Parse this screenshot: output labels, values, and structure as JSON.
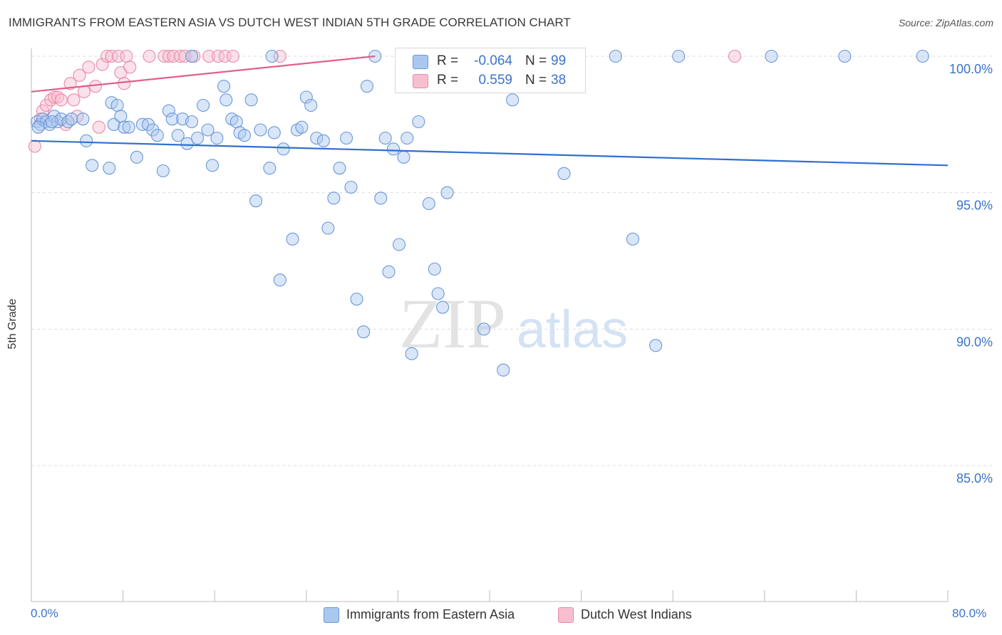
{
  "title": "IMMIGRANTS FROM EASTERN ASIA VS DUTCH WEST INDIAN 5TH GRADE CORRELATION CHART",
  "source": "Source: ZipAtlas.com",
  "watermark": {
    "zip": "ZIP",
    "atlas": "atlas"
  },
  "colors": {
    "blue_fill": "#aac8ef",
    "blue_stroke": "#6a98d8",
    "blue_line": "#2f6fd0",
    "pink_fill": "#f6bfd0",
    "pink_stroke": "#e88aa8",
    "pink_line": "#e0608a",
    "grid": "#dddddd",
    "axis_text": "#3b73c9"
  },
  "stats": [
    {
      "r_label": "R =",
      "r_value": "-0.064",
      "n_label": "N =",
      "n_value": "99"
    },
    {
      "r_label": "R =",
      "r_value": "0.559",
      "n_label": "N =",
      "n_value": "38"
    }
  ],
  "legend": [
    {
      "label": "Immigrants from Eastern Asia"
    },
    {
      "label": "Dutch West Indians"
    }
  ],
  "x_axis": {
    "min_label": "0.0%",
    "max_label": "80.0%"
  },
  "chart_data": {
    "type": "scatter",
    "title": "IMMIGRANTS FROM EASTERN ASIA VS DUTCH WEST INDIAN 5TH GRADE CORRELATION CHART",
    "xlabel": "",
    "ylabel": "5th Grade",
    "xlim": [
      0,
      80
    ],
    "ylim": [
      80,
      101
    ],
    "y_ticks": [
      {
        "value": 100,
        "label": "100.0%"
      },
      {
        "value": 95,
        "label": "95.0%"
      },
      {
        "value": 90,
        "label": "90.0%"
      },
      {
        "value": 85,
        "label": "85.0%"
      }
    ],
    "grid": "horizontal dashed",
    "series": [
      {
        "name": "Immigrants from Eastern Asia",
        "trend": {
          "x": [
            0,
            80
          ],
          "y": [
            96.9,
            96.0
          ]
        },
        "points": [
          [
            0.5,
            97.6
          ],
          [
            0.8,
            97.5
          ],
          [
            1.0,
            97.7
          ],
          [
            1.3,
            97.6
          ],
          [
            1.6,
            97.5
          ],
          [
            2.0,
            97.8
          ],
          [
            2.3,
            97.6
          ],
          [
            2.6,
            97.7
          ],
          [
            3.2,
            97.6
          ],
          [
            3.5,
            97.7
          ],
          [
            4.5,
            97.7
          ],
          [
            4.8,
            96.9
          ],
          [
            5.3,
            96.0
          ],
          [
            6.8,
            95.9
          ],
          [
            7.0,
            98.3
          ],
          [
            7.2,
            97.5
          ],
          [
            7.5,
            98.2
          ],
          [
            7.8,
            97.8
          ],
          [
            8.1,
            97.4
          ],
          [
            8.5,
            97.4
          ],
          [
            9.2,
            96.3
          ],
          [
            9.7,
            97.5
          ],
          [
            10.2,
            97.5
          ],
          [
            10.6,
            97.3
          ],
          [
            11.0,
            97.1
          ],
          [
            11.5,
            95.8
          ],
          [
            12.0,
            98.0
          ],
          [
            12.3,
            97.7
          ],
          [
            12.8,
            97.1
          ],
          [
            13.2,
            97.7
          ],
          [
            13.6,
            96.8
          ],
          [
            14.0,
            97.6
          ],
          [
            14.5,
            97.0
          ],
          [
            15.0,
            98.2
          ],
          [
            15.4,
            97.3
          ],
          [
            15.8,
            96.0
          ],
          [
            16.2,
            97.0
          ],
          [
            16.8,
            98.9
          ],
          [
            17.0,
            98.4
          ],
          [
            17.5,
            97.7
          ],
          [
            17.9,
            97.6
          ],
          [
            18.2,
            97.2
          ],
          [
            18.6,
            97.1
          ],
          [
            19.2,
            98.4
          ],
          [
            19.6,
            94.7
          ],
          [
            20.0,
            97.3
          ],
          [
            20.8,
            95.9
          ],
          [
            21.2,
            97.2
          ],
          [
            21.7,
            91.8
          ],
          [
            22.0,
            96.6
          ],
          [
            22.8,
            93.3
          ],
          [
            23.2,
            97.3
          ],
          [
            23.6,
            97.4
          ],
          [
            24.0,
            98.5
          ],
          [
            24.4,
            98.2
          ],
          [
            24.9,
            97.0
          ],
          [
            25.5,
            96.9
          ],
          [
            25.9,
            93.7
          ],
          [
            26.4,
            94.8
          ],
          [
            26.9,
            95.9
          ],
          [
            27.5,
            97.0
          ],
          [
            27.9,
            95.2
          ],
          [
            28.4,
            91.1
          ],
          [
            29.0,
            89.9
          ],
          [
            29.3,
            98.9
          ],
          [
            30.0,
            100.0
          ],
          [
            30.5,
            94.8
          ],
          [
            30.9,
            97.0
          ],
          [
            31.2,
            92.1
          ],
          [
            31.6,
            96.6
          ],
          [
            32.1,
            93.1
          ],
          [
            32.5,
            96.3
          ],
          [
            32.8,
            97.0
          ],
          [
            33.2,
            89.1
          ],
          [
            33.8,
            97.6
          ],
          [
            34.7,
            94.6
          ],
          [
            35.2,
            92.2
          ],
          [
            35.5,
            91.3
          ],
          [
            35.9,
            90.8
          ],
          [
            36.3,
            95.0
          ],
          [
            39.0,
            100.0
          ],
          [
            39.5,
            90.0
          ],
          [
            40.5,
            100.0
          ],
          [
            41.2,
            88.5
          ],
          [
            42.0,
            98.4
          ],
          [
            43.5,
            100.0
          ],
          [
            46.0,
            100.0
          ],
          [
            46.5,
            95.7
          ],
          [
            51.0,
            100.0
          ],
          [
            52.5,
            93.3
          ],
          [
            54.5,
            89.4
          ],
          [
            56.5,
            100.0
          ],
          [
            64.6,
            100.0
          ],
          [
            71.0,
            100.0
          ],
          [
            77.8,
            100.0
          ],
          [
            21.0,
            100.0
          ],
          [
            14.0,
            100.0
          ],
          [
            0.6,
            97.4
          ],
          [
            1.8,
            97.6
          ]
        ]
      },
      {
        "name": "Dutch West Indians",
        "trend": {
          "x": [
            0,
            30
          ],
          "y": [
            98.7,
            100.0
          ]
        },
        "points": [
          [
            0.3,
            96.7
          ],
          [
            0.8,
            97.7
          ],
          [
            1.0,
            98.0
          ],
          [
            1.3,
            98.2
          ],
          [
            1.7,
            98.4
          ],
          [
            2.0,
            98.5
          ],
          [
            2.3,
            98.5
          ],
          [
            2.6,
            98.4
          ],
          [
            3.0,
            97.5
          ],
          [
            3.4,
            99.0
          ],
          [
            3.7,
            98.4
          ],
          [
            4.0,
            97.8
          ],
          [
            4.2,
            99.3
          ],
          [
            4.6,
            98.7
          ],
          [
            5.0,
            99.6
          ],
          [
            5.6,
            98.9
          ],
          [
            5.9,
            97.4
          ],
          [
            6.2,
            99.7
          ],
          [
            6.6,
            100.0
          ],
          [
            7.0,
            100.0
          ],
          [
            7.6,
            100.0
          ],
          [
            7.8,
            99.4
          ],
          [
            8.1,
            99.0
          ],
          [
            8.3,
            100.0
          ],
          [
            8.6,
            99.6
          ],
          [
            10.3,
            100.0
          ],
          [
            11.6,
            100.0
          ],
          [
            12.0,
            100.0
          ],
          [
            12.4,
            100.0
          ],
          [
            13.0,
            100.0
          ],
          [
            13.4,
            100.0
          ],
          [
            14.2,
            100.0
          ],
          [
            15.5,
            100.0
          ],
          [
            16.3,
            100.0
          ],
          [
            16.9,
            100.0
          ],
          [
            17.6,
            100.0
          ],
          [
            21.7,
            100.0
          ],
          [
            61.4,
            100.0
          ]
        ]
      }
    ]
  }
}
